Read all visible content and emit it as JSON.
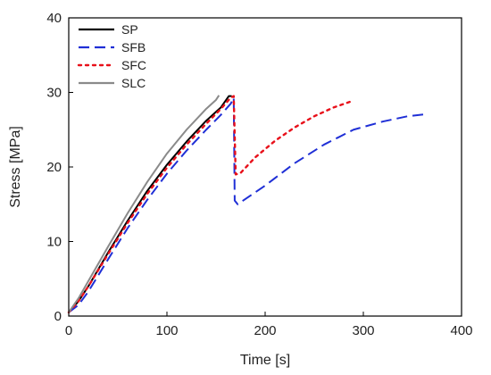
{
  "chart_data": {
    "type": "line",
    "title": "",
    "xlabel": "Time [s]",
    "ylabel": "Stress [MPa]",
    "xlim": [
      0,
      400
    ],
    "ylim": [
      0,
      40
    ],
    "xticks": [
      0,
      100,
      200,
      300,
      400
    ],
    "yticks": [
      0,
      10,
      20,
      30,
      40
    ],
    "grid": false,
    "legend_position": "top-left",
    "series": [
      {
        "name": "SP",
        "color": "#000000",
        "dash": "solid",
        "points": [
          [
            0,
            0.5
          ],
          [
            10,
            2.0
          ],
          [
            20,
            4.0
          ],
          [
            40,
            8.5
          ],
          [
            60,
            12.8
          ],
          [
            80,
            16.8
          ],
          [
            100,
            20.3
          ],
          [
            120,
            23.4
          ],
          [
            140,
            26.2
          ],
          [
            155,
            28.0
          ],
          [
            163,
            29.5
          ],
          [
            166,
            29.5
          ]
        ]
      },
      {
        "name": "SFB",
        "color": "#1f2fd6",
        "dash": "dashed",
        "points": [
          [
            0,
            0.5
          ],
          [
            10,
            1.5
          ],
          [
            20,
            3.3
          ],
          [
            40,
            7.6
          ],
          [
            60,
            11.8
          ],
          [
            80,
            15.6
          ],
          [
            100,
            19.1
          ],
          [
            120,
            22.2
          ],
          [
            140,
            25.0
          ],
          [
            155,
            27.0
          ],
          [
            165,
            28.5
          ],
          [
            168,
            29.3
          ],
          [
            169,
            15.5
          ],
          [
            172,
            15.0
          ],
          [
            200,
            17.5
          ],
          [
            230,
            20.5
          ],
          [
            260,
            23.0
          ],
          [
            290,
            25.0
          ],
          [
            320,
            26.1
          ],
          [
            345,
            26.8
          ],
          [
            365,
            27.1
          ]
        ]
      },
      {
        "name": "SFC",
        "color": "#e8101a",
        "dash": "dotted",
        "points": [
          [
            0,
            0.5
          ],
          [
            10,
            2.0
          ],
          [
            20,
            4.0
          ],
          [
            40,
            8.3
          ],
          [
            60,
            12.5
          ],
          [
            80,
            16.4
          ],
          [
            100,
            19.9
          ],
          [
            120,
            23.0
          ],
          [
            140,
            25.8
          ],
          [
            155,
            27.8
          ],
          [
            165,
            29.3
          ],
          [
            168,
            29.5
          ],
          [
            170,
            19.0
          ],
          [
            175,
            19.2
          ],
          [
            190,
            21.3
          ],
          [
            210,
            23.5
          ],
          [
            230,
            25.3
          ],
          [
            250,
            26.8
          ],
          [
            270,
            28.0
          ],
          [
            290,
            28.9
          ]
        ]
      },
      {
        "name": "SLC",
        "color": "#8a8a8a",
        "dash": "solid",
        "points": [
          [
            0,
            0.5
          ],
          [
            10,
            2.4
          ],
          [
            20,
            4.7
          ],
          [
            40,
            9.3
          ],
          [
            60,
            13.8
          ],
          [
            80,
            18.0
          ],
          [
            100,
            21.8
          ],
          [
            120,
            25.0
          ],
          [
            140,
            27.8
          ],
          [
            150,
            29.0
          ],
          [
            153,
            29.6
          ]
        ]
      }
    ]
  }
}
